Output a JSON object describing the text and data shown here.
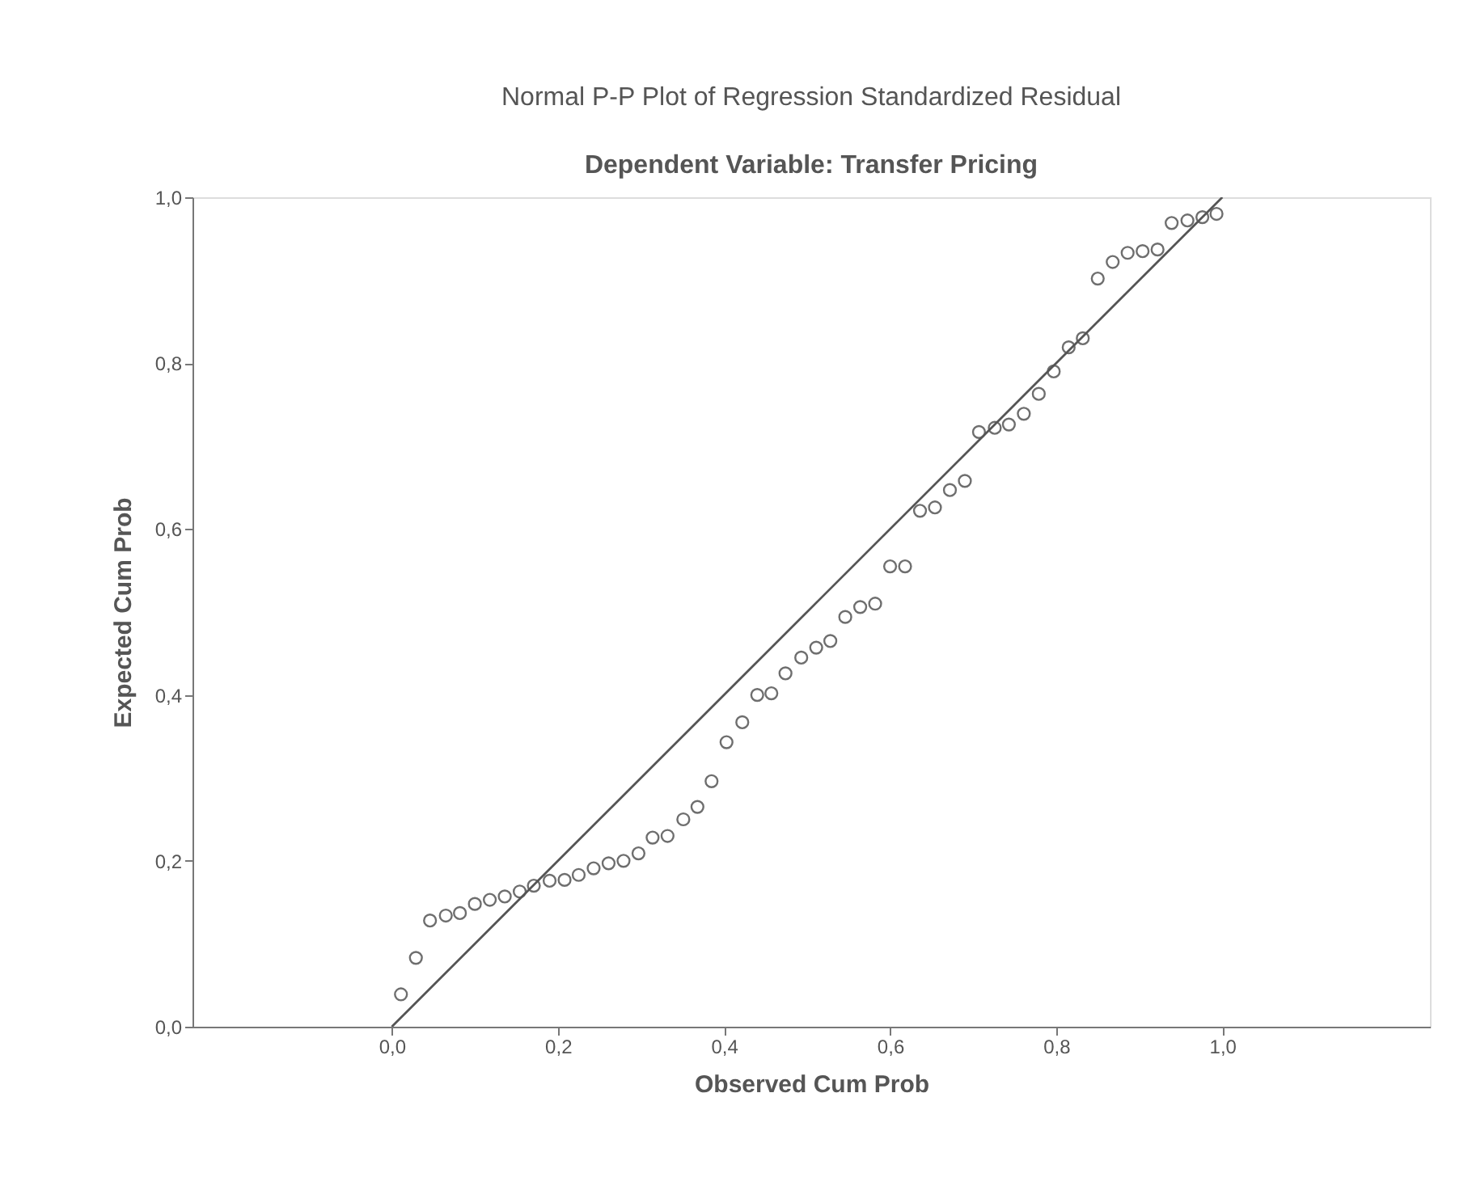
{
  "chart_data": {
    "type": "scatter",
    "title": "Normal P-P Plot of Regression Standardized Residual",
    "subtitle": "Dependent Variable: Transfer Pricing",
    "xlabel": "Observed Cum Prob",
    "ylabel": "Expected Cum Prob",
    "xlim": [
      -0.24,
      1.25
    ],
    "ylim": [
      0,
      1.0
    ],
    "xticks": [
      {
        "value": 0,
        "label": "0,0"
      },
      {
        "value": 0.2,
        "label": "0,2"
      },
      {
        "value": 0.4,
        "label": "0,4"
      },
      {
        "value": 0.6,
        "label": "0,6"
      },
      {
        "value": 0.8,
        "label": "0,8"
      },
      {
        "value": 1.0,
        "label": "1,0"
      }
    ],
    "yticks": [
      {
        "value": 0,
        "label": "0,0"
      },
      {
        "value": 0.2,
        "label": "0,2"
      },
      {
        "value": 0.4,
        "label": "0,4"
      },
      {
        "value": 0.6,
        "label": "0,6"
      },
      {
        "value": 0.8,
        "label": "0,8"
      },
      {
        "value": 1.0,
        "label": "1,0"
      }
    ],
    "grid": false,
    "legend": false,
    "series": [
      {
        "type": "scatter",
        "marker": "circle",
        "color": "#6e6e6e",
        "x": [
          0.011,
          0.029,
          0.046,
          0.065,
          0.082,
          0.1,
          0.118,
          0.136,
          0.154,
          0.171,
          0.19,
          0.208,
          0.225,
          0.243,
          0.261,
          0.279,
          0.297,
          0.314,
          0.332,
          0.351,
          0.368,
          0.385,
          0.403,
          0.422,
          0.44,
          0.457,
          0.474,
          0.493,
          0.511,
          0.528,
          0.546,
          0.564,
          0.582,
          0.6,
          0.618,
          0.636,
          0.654,
          0.672,
          0.69,
          0.707,
          0.726,
          0.743,
          0.761,
          0.779,
          0.797,
          0.815,
          0.832,
          0.85,
          0.868,
          0.886,
          0.904,
          0.922,
          0.939,
          0.958,
          0.976,
          0.993
        ],
        "values": [
          0.039,
          0.083,
          0.128,
          0.134,
          0.137,
          0.148,
          0.153,
          0.157,
          0.163,
          0.17,
          0.176,
          0.177,
          0.183,
          0.191,
          0.197,
          0.2,
          0.209,
          0.228,
          0.23,
          0.25,
          0.265,
          0.296,
          0.343,
          0.367,
          0.4,
          0.402,
          0.426,
          0.445,
          0.457,
          0.465,
          0.494,
          0.506,
          0.51,
          0.555,
          0.555,
          0.622,
          0.626,
          0.647,
          0.658,
          0.717,
          0.722,
          0.726,
          0.739,
          0.763,
          0.79,
          0.819,
          0.83,
          0.902,
          0.922,
          0.933,
          0.935,
          0.937,
          0.969,
          0.972,
          0.976,
          0.98
        ]
      },
      {
        "type": "line",
        "line_style": "solid",
        "color": "#555555",
        "x": [
          0,
          1.0
        ],
        "values": [
          0,
          1.0
        ]
      }
    ]
  }
}
